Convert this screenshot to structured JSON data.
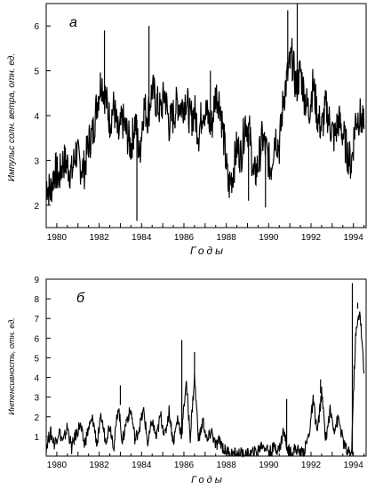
{
  "chart_data": [
    {
      "type": "line",
      "panel_label": "а",
      "xlabel": "Годы",
      "ylabel": "Импульс солн. ветра, отн. ед.",
      "xlim": [
        1979.5,
        1994.6
      ],
      "ylim": [
        1.5,
        6.5
      ],
      "x_ticks": [
        1980,
        1982,
        1984,
        1986,
        1988,
        1990,
        1992,
        1994
      ],
      "x_tick_labels": [
        "1980",
        "1982",
        "1984",
        "1986",
        "1988",
        "1990",
        "1992",
        "1994"
      ],
      "y_ticks": [
        2,
        3,
        4,
        5,
        6
      ],
      "y_tick_labels": [
        "2",
        "3",
        "4",
        "5",
        "6"
      ],
      "grid": false,
      "series": [
        {
          "x": [
            1979.5,
            1979.7,
            1979.9,
            1980.1,
            1980.3,
            1980.5,
            1980.7,
            1980.9,
            1981.1,
            1981.3,
            1981.5,
            1981.7,
            1981.9,
            1982.1,
            1982.3,
            1982.5,
            1982.7,
            1982.9,
            1983.1,
            1983.3,
            1983.5,
            1983.7,
            1983.9,
            1984.1,
            1984.3,
            1984.5,
            1984.7,
            1984.9,
            1985.1,
            1985.3,
            1985.5,
            1985.7,
            1985.9,
            1986.1,
            1986.3,
            1986.5,
            1986.7,
            1986.9,
            1987.1,
            1987.3,
            1987.5,
            1987.7,
            1987.9,
            1988.1,
            1988.3,
            1988.5,
            1988.7,
            1988.9,
            1989.1,
            1989.3,
            1989.5,
            1989.7,
            1989.9,
            1990.1,
            1990.3,
            1990.5,
            1990.7,
            1990.9,
            1991.1,
            1991.3,
            1991.5,
            1991.7,
            1991.9,
            1992.1,
            1992.3,
            1992.5,
            1992.7,
            1992.9,
            1993.1,
            1993.3,
            1993.5,
            1993.7,
            1993.9,
            1994.1,
            1994.3,
            1994.5
          ],
          "y": [
            2.5,
            2.3,
            2.8,
            2.6,
            3.0,
            2.9,
            2.7,
            3.2,
            2.9,
            2.8,
            3.4,
            3.6,
            4.3,
            4.8,
            4.4,
            3.9,
            4.2,
            3.5,
            3.9,
            3.6,
            3.3,
            3.9,
            3.1,
            4.2,
            4.0,
            4.6,
            4.3,
            4.1,
            4.5,
            3.8,
            4.0,
            4.3,
            4.2,
            4.4,
            3.9,
            4.1,
            3.6,
            4.2,
            4.0,
            3.7,
            4.5,
            4.3,
            3.4,
            2.4,
            2.7,
            3.3,
            3.1,
            3.9,
            3.6,
            2.6,
            2.9,
            3.5,
            3.2,
            2.8,
            3.6,
            3.3,
            4.4,
            4.9,
            5.3,
            4.6,
            5.0,
            4.4,
            4.1,
            4.7,
            4.0,
            3.7,
            4.2,
            3.8,
            3.5,
            3.9,
            3.6,
            3.2,
            2.9,
            3.9,
            4.0,
            3.7
          ],
          "spikes": [
            {
              "x": 1982.25,
              "y": 5.9
            },
            {
              "x": 1983.78,
              "y": 1.65
            },
            {
              "x": 1984.35,
              "y": 6.0
            },
            {
              "x": 1987.25,
              "y": 5.0
            },
            {
              "x": 1989.05,
              "y": 2.1
            },
            {
              "x": 1989.85,
              "y": 1.95
            },
            {
              "x": 1990.9,
              "y": 6.35
            },
            {
              "x": 1991.35,
              "y": 6.5
            }
          ]
        }
      ]
    },
    {
      "type": "line",
      "panel_label": "б",
      "xlabel": "Годы",
      "ylabel": "Интенсивность, отн. ед.",
      "xlim": [
        1979.5,
        1994.6
      ],
      "ylim": [
        0,
        9
      ],
      "x_ticks": [
        1980,
        1982,
        1984,
        1986,
        1988,
        1990,
        1992,
        1994
      ],
      "x_tick_labels": [
        "1980",
        "1982",
        "1984",
        "1986",
        "1988",
        "1990",
        "1992",
        "1994"
      ],
      "y_ticks": [
        1,
        2,
        3,
        4,
        5,
        6,
        7,
        8,
        9
      ],
      "y_tick_labels": [
        "1",
        "2",
        "3",
        "4",
        "5",
        "6",
        "7",
        "8",
        "9"
      ],
      "grid": false,
      "series": [
        {
          "x": [
            1979.5,
            1979.7,
            1979.9,
            1980.1,
            1980.3,
            1980.5,
            1980.7,
            1980.9,
            1981.1,
            1981.3,
            1981.5,
            1981.7,
            1981.9,
            1982.1,
            1982.3,
            1982.5,
            1982.7,
            1982.9,
            1983.1,
            1983.3,
            1983.5,
            1983.7,
            1983.9,
            1984.1,
            1984.3,
            1984.5,
            1984.7,
            1984.9,
            1985.1,
            1985.3,
            1985.5,
            1985.7,
            1985.9,
            1986.1,
            1986.3,
            1986.5,
            1986.7,
            1986.9,
            1987.1,
            1987.3,
            1987.5,
            1987.7,
            1987.9,
            1988.1,
            1988.3,
            1988.5,
            1988.7,
            1988.9,
            1989.1,
            1989.3,
            1989.5,
            1989.7,
            1989.9,
            1990.1,
            1990.3,
            1990.5,
            1990.7,
            1990.9,
            1991.1,
            1991.3,
            1991.5,
            1991.7,
            1991.9,
            1992.1,
            1992.3,
            1992.5,
            1992.7,
            1992.9,
            1993.1,
            1993.3,
            1993.5,
            1993.7,
            1993.9,
            1994.1,
            1994.3,
            1994.5
          ],
          "y": [
            0.5,
            1.2,
            0.6,
            1.3,
            0.7,
            1.5,
            0.4,
            1.1,
            1.6,
            0.6,
            1.4,
            1.9,
            0.6,
            2.0,
            0.8,
            1.6,
            0.5,
            2.6,
            0.7,
            1.9,
            2.3,
            0.8,
            1.5,
            2.3,
            0.6,
            1.8,
            0.9,
            2.1,
            1.0,
            2.3,
            0.7,
            1.9,
            1.1,
            3.8,
            1.0,
            4.0,
            0.8,
            1.8,
            0.7,
            1.3,
            0.5,
            0.8,
            0.3,
            0.2,
            0.1,
            0.05,
            0.1,
            0.0,
            0.1,
            0.15,
            0.3,
            0.6,
            0.4,
            0.2,
            0.5,
            0.3,
            1.3,
            0.3,
            0.2,
            0.4,
            0.1,
            0.3,
            1.1,
            2.8,
            1.2,
            3.2,
            0.9,
            2.3,
            1.4,
            1.9,
            0.8,
            0.2,
            0.05,
            6.0,
            7.5,
            4.2
          ],
          "spikes": [
            {
              "x": 1983.0,
              "y": 3.6
            },
            {
              "x": 1985.9,
              "y": 5.9
            },
            {
              "x": 1986.5,
              "y": 5.3
            },
            {
              "x": 1990.85,
              "y": 2.9
            },
            {
              "x": 1992.45,
              "y": 3.9
            },
            {
              "x": 1993.95,
              "y": 8.8
            },
            {
              "x": 1994.2,
              "y": 7.8
            }
          ]
        }
      ]
    }
  ]
}
